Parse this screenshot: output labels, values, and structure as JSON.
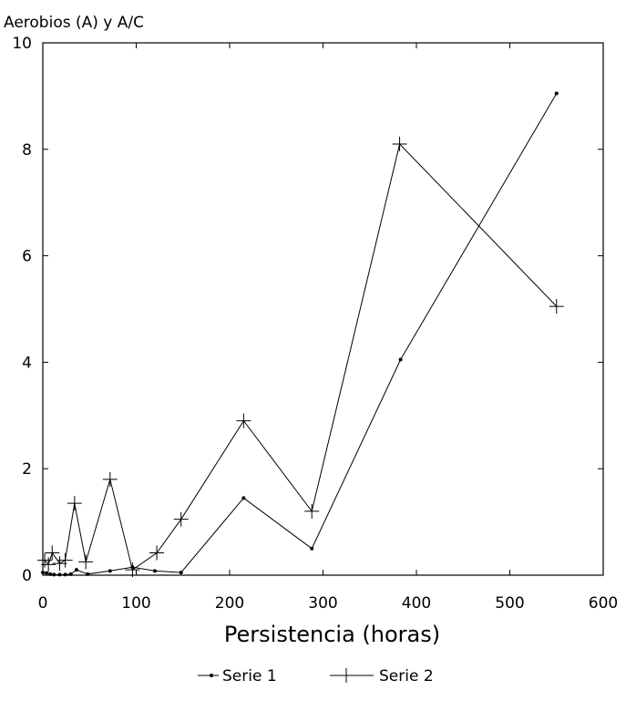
{
  "chart_data": {
    "type": "line",
    "title": "",
    "xlabel": "Persistencia (horas)",
    "ylabel": "Aerobios (A) y A/C",
    "xlim": [
      0,
      600
    ],
    "ylim": [
      0,
      10
    ],
    "xticks": [
      0,
      100,
      200,
      300,
      400,
      500,
      600
    ],
    "yticks": [
      0,
      2,
      4,
      6,
      8,
      10
    ],
    "grid": false,
    "legend_position": "bottom-center",
    "series": [
      {
        "name": "Serie 1",
        "marker": "dot",
        "color": "#000000",
        "points": [
          [
            0,
            0.05
          ],
          [
            4,
            0.04
          ],
          [
            8,
            0.02
          ],
          [
            12,
            0.01
          ],
          [
            18,
            0.01
          ],
          [
            24,
            0.01
          ],
          [
            30,
            0.02
          ],
          [
            36,
            0.1
          ],
          [
            48,
            0.02
          ],
          [
            72,
            0.08
          ],
          [
            96,
            0.15
          ],
          [
            120,
            0.08
          ],
          [
            148,
            0.05
          ],
          [
            215,
            1.45
          ],
          [
            288,
            0.5
          ],
          [
            383,
            4.05
          ],
          [
            550,
            9.05
          ]
        ]
      },
      {
        "name": "Serie 2",
        "marker": "plus",
        "color": "#000000",
        "points": [
          [
            2,
            0.28
          ],
          [
            6,
            0.2
          ],
          [
            10,
            0.42
          ],
          [
            18,
            0.22
          ],
          [
            24,
            0.28
          ],
          [
            34,
            1.35
          ],
          [
            46,
            0.25
          ],
          [
            72,
            1.8
          ],
          [
            96,
            0.1
          ],
          [
            122,
            0.42
          ],
          [
            148,
            1.05
          ],
          [
            215,
            2.9
          ],
          [
            288,
            1.2
          ],
          [
            382,
            8.1
          ],
          [
            550,
            5.05
          ]
        ]
      }
    ]
  }
}
